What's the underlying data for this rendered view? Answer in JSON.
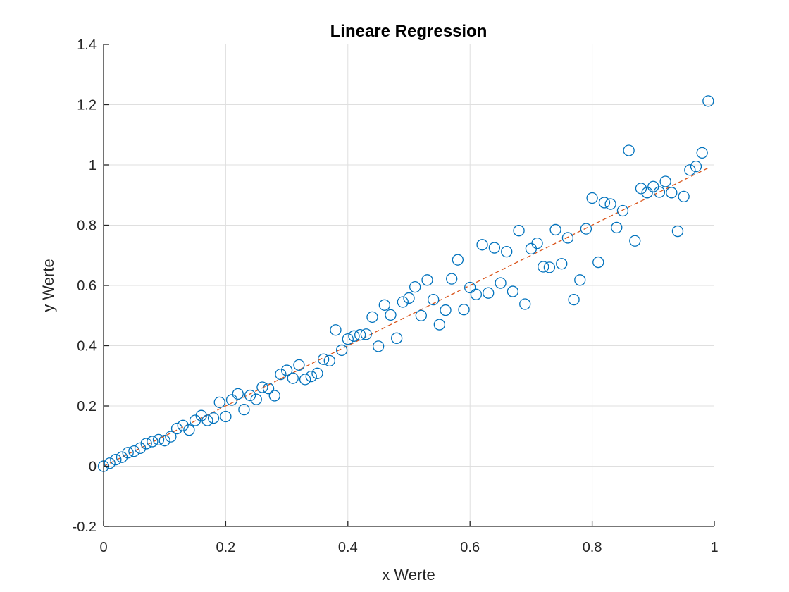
{
  "chart_data": {
    "type": "scatter",
    "title": "Lineare Regression",
    "xlabel": "x Werte",
    "ylabel": "y Werte",
    "xlim": [
      0,
      1
    ],
    "ylim": [
      -0.2,
      1.4
    ],
    "xticks": [
      0,
      0.2,
      0.4,
      0.6,
      0.8,
      1
    ],
    "yticks": [
      -0.2,
      0,
      0.2,
      0.4,
      0.6,
      0.8,
      1,
      1.2,
      1.4
    ],
    "xtick_labels": [
      "0",
      "0.2",
      "0.4",
      "0.6",
      "0.8",
      "1"
    ],
    "ytick_labels": [
      "-0.2",
      "0",
      "0.2",
      "0.4",
      "0.6",
      "0.8",
      "1",
      "1.2",
      "1.4"
    ],
    "grid": true,
    "series": [
      {
        "marker": "open-circle",
        "color": "#0072BD",
        "x": [
          0.0,
          0.01,
          0.02,
          0.03,
          0.04,
          0.05,
          0.06,
          0.07,
          0.08,
          0.09,
          0.1,
          0.11,
          0.12,
          0.13,
          0.14,
          0.15,
          0.16,
          0.17,
          0.18,
          0.19,
          0.2,
          0.21,
          0.22,
          0.23,
          0.24,
          0.25,
          0.26,
          0.27,
          0.28,
          0.29,
          0.3,
          0.31,
          0.32,
          0.33,
          0.34,
          0.35,
          0.36,
          0.37,
          0.38,
          0.39,
          0.4,
          0.41,
          0.42,
          0.43,
          0.44,
          0.45,
          0.46,
          0.47,
          0.48,
          0.49,
          0.5,
          0.51,
          0.52,
          0.53,
          0.54,
          0.55,
          0.56,
          0.57,
          0.58,
          0.59,
          0.6,
          0.61,
          0.62,
          0.63,
          0.64,
          0.65,
          0.66,
          0.67,
          0.68,
          0.69,
          0.7,
          0.71,
          0.72,
          0.73,
          0.74,
          0.75,
          0.76,
          0.77,
          0.78,
          0.79,
          0.8,
          0.81,
          0.82,
          0.83,
          0.84,
          0.85,
          0.86,
          0.87,
          0.88,
          0.89,
          0.9,
          0.91,
          0.92,
          0.93,
          0.94,
          0.95,
          0.96,
          0.97,
          0.98,
          0.99
        ],
        "y": [
          0.0,
          0.01,
          0.022,
          0.03,
          0.045,
          0.05,
          0.06,
          0.075,
          0.082,
          0.088,
          0.085,
          0.098,
          0.125,
          0.135,
          0.12,
          0.152,
          0.168,
          0.152,
          0.16,
          0.212,
          0.165,
          0.22,
          0.24,
          0.188,
          0.235,
          0.222,
          0.262,
          0.258,
          0.234,
          0.305,
          0.318,
          0.292,
          0.336,
          0.288,
          0.298,
          0.308,
          0.355,
          0.35,
          0.452,
          0.385,
          0.422,
          0.432,
          0.436,
          0.438,
          0.495,
          0.398,
          0.535,
          0.502,
          0.425,
          0.545,
          0.558,
          0.595,
          0.5,
          0.618,
          0.553,
          0.47,
          0.518,
          0.622,
          0.685,
          0.52,
          0.593,
          0.57,
          0.735,
          0.575,
          0.725,
          0.608,
          0.712,
          0.58,
          0.782,
          0.538,
          0.722,
          0.74,
          0.662,
          0.66,
          0.785,
          0.672,
          0.758,
          0.553,
          0.618,
          0.788,
          0.89,
          0.677,
          0.875,
          0.87,
          0.792,
          0.848,
          1.048,
          0.748,
          0.922,
          0.908,
          0.928,
          0.91,
          0.945,
          0.908,
          0.78,
          0.895,
          0.983,
          0.995,
          1.04,
          1.212
        ]
      },
      {
        "type": "line",
        "style": "dashed",
        "color": "#D95319",
        "x": [
          0,
          0.99
        ],
        "y": [
          0,
          0.99
        ]
      }
    ]
  }
}
